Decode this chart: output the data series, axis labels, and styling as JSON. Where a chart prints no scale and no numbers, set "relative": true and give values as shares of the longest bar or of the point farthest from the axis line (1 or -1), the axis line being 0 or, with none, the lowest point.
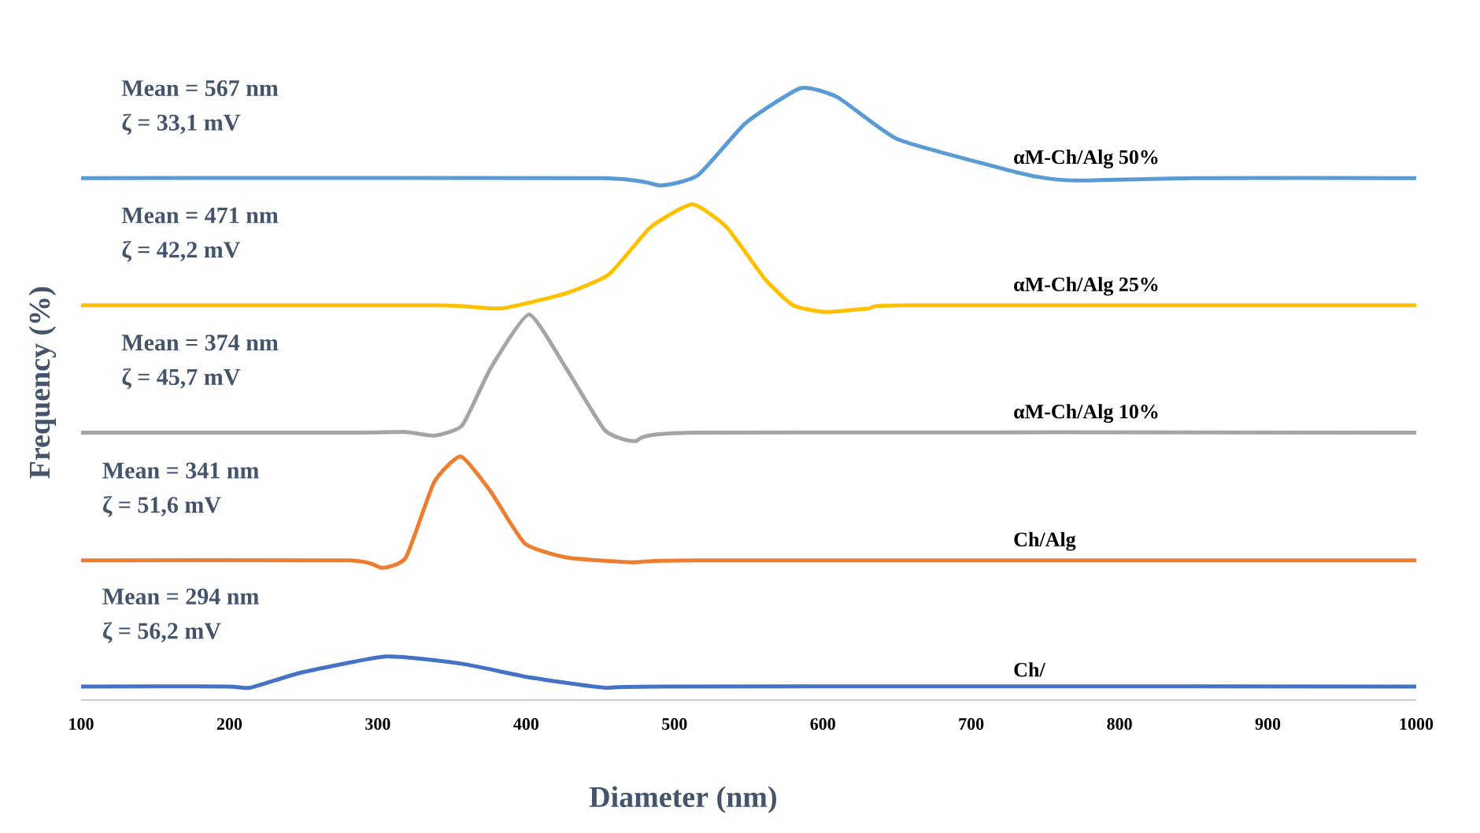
{
  "chart_data": {
    "type": "line",
    "relative": true,
    "xlabel": "Diameter  (nm)",
    "ylabel": "Frequency (%)",
    "xlim": [
      100,
      1000
    ],
    "xticks": [
      100,
      200,
      300,
      400,
      500,
      600,
      700,
      800,
      900,
      1000
    ],
    "grid": false,
    "marker": "none",
    "line_style": "solid",
    "series": [
      {
        "name": "αM-Ch/Alg 50%",
        "color": "#5b9bd5",
        "x": [
          100,
          450,
          491,
          516,
          548,
          585,
          610,
          650,
          714,
          745,
          771,
          850,
          1000
        ],
        "values": [
          0.853,
          0.853,
          0.841,
          0.858,
          0.943,
          1.0,
          0.985,
          0.917,
          0.873,
          0.855,
          0.849,
          0.853,
          0.853
        ]
      },
      {
        "name": "αM-Ch/Alg  25%",
        "color": "#ffc000",
        "x": [
          100,
          340,
          383,
          427,
          456,
          484,
          512,
          535,
          561,
          580,
          602,
          631,
          656,
          1000
        ],
        "values": [
          0.645,
          0.645,
          0.64,
          0.665,
          0.696,
          0.773,
          0.81,
          0.773,
          0.688,
          0.645,
          0.634,
          0.64,
          0.645,
          0.645
        ]
      },
      {
        "name": "αM-Ch/Alg  10%",
        "color": "#a5a5a5",
        "x": [
          100,
          287,
          319,
          338,
          357,
          376,
          402,
          427,
          453,
          473,
          513,
          1000
        ],
        "values": [
          0.437,
          0.437,
          0.438,
          0.432,
          0.449,
          0.542,
          0.63,
          0.542,
          0.441,
          0.423,
          0.437,
          0.437
        ]
      },
      {
        "name": "Ch/Alg",
        "color": "#ed7d31",
        "x": [
          100,
          281,
          303,
          319,
          338,
          356,
          376,
          399,
          427,
          472,
          516,
          1000
        ],
        "values": [
          0.228,
          0.228,
          0.216,
          0.233,
          0.356,
          0.398,
          0.341,
          0.256,
          0.233,
          0.225,
          0.228,
          0.228
        ]
      },
      {
        "name": "Ch/",
        "color": "#4472c4",
        "x": [
          100,
          198,
          214,
          249,
          306,
          357,
          402,
          453,
          491,
          1000
        ],
        "values": [
          0.022,
          0.022,
          0.02,
          0.045,
          0.071,
          0.059,
          0.037,
          0.02,
          0.022,
          0.022
        ]
      }
    ],
    "annotations": [
      "Mean = 567 nm",
      "ζ = 33,1 mV",
      "Mean = 471 nm",
      "ζ = 42,2 mV",
      "Mean = 374 nm",
      "ζ = 45,7 mV",
      "Mean = 341 nm",
      "ζ = 51,6 mV",
      "Mean = 294 nm",
      "ζ = 56,2 mV"
    ]
  }
}
